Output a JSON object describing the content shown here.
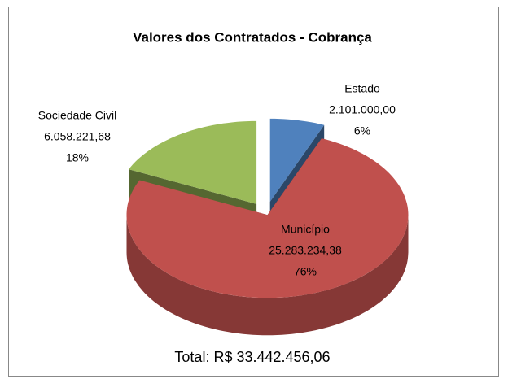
{
  "chart_data": {
    "type": "pie",
    "title": "Valores dos Contratados - Cobrança",
    "categories": [
      "Estado",
      "Município",
      "Sociedade Civil"
    ],
    "values": [
      2101000.0,
      25283234.38,
      6058221.68
    ],
    "value_labels": [
      "2.101.000,00",
      "25.283.234,38",
      "6.058.221,68"
    ],
    "percent_labels": [
      "6%",
      "76%",
      "18%"
    ],
    "colors": [
      "#4f81bd",
      "#c0504d",
      "#9bbb59"
    ],
    "total_label": "Total: R$ 33.442.456,06"
  }
}
